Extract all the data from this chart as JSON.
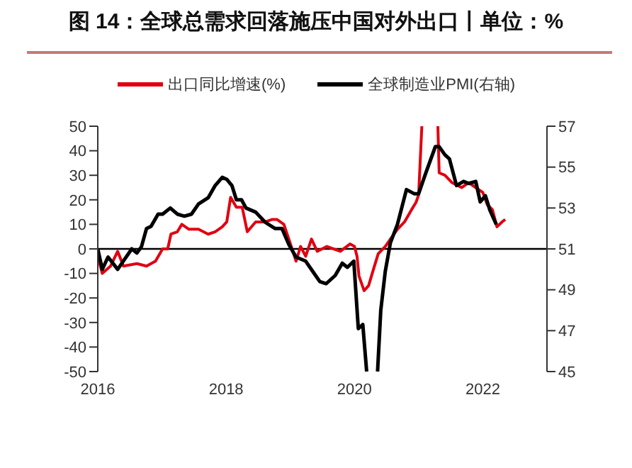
{
  "chart_data": {
    "type": "line",
    "title": "图 14：全球总需求回落施压中国对外出口丨单位：%",
    "xlim": [
      2016,
      2023
    ],
    "xticks": [
      2016,
      2018,
      2020,
      2022
    ],
    "ylim": [
      -50,
      50
    ],
    "yticks": [
      -50,
      -40,
      -30,
      -20,
      -10,
      0,
      10,
      20,
      30,
      40,
      50
    ],
    "y2lim": [
      45,
      57
    ],
    "y2ticks": [
      45,
      47,
      49,
      51,
      53,
      55,
      57
    ],
    "legend": "top",
    "grid": false,
    "marker": "none",
    "line_style": "solid",
    "ref_lines": [
      {
        "axis": "y",
        "value": 0,
        "color": "#000000"
      }
    ],
    "series": [
      {
        "name": "出口同比增速(%)",
        "color": "#e00010",
        "x": [
          2016.0,
          2016.07,
          2016.2,
          2016.31,
          2016.4,
          2016.61,
          2016.76,
          2016.9,
          2017.01,
          2017.09,
          2017.14,
          2017.24,
          2017.31,
          2017.42,
          2017.57,
          2017.72,
          2017.83,
          2017.94,
          2018.01,
          2018.07,
          2018.16,
          2018.25,
          2018.33,
          2018.46,
          2018.61,
          2018.72,
          2018.79,
          2018.9,
          2018.99,
          2019.09,
          2019.16,
          2019.24,
          2019.33,
          2019.42,
          2019.57,
          2019.78,
          2019.93,
          2020.0,
          2020.04,
          2020.07,
          2020.15,
          2020.22,
          2020.3,
          2020.37,
          2020.48,
          2020.56,
          2020.67,
          2020.78,
          2020.89,
          2020.96,
          2021.0,
          2021.05,
          2021.18,
          2021.3,
          2021.32,
          2021.41,
          2021.52,
          2021.67,
          2021.78,
          2021.89,
          2022.0,
          2022.07,
          2022.15,
          2022.22,
          2022.3,
          2022.35
        ],
        "values": [
          -3,
          -10,
          -7,
          -1,
          -7,
          -6,
          -7,
          -5,
          0,
          0,
          6,
          7,
          10,
          8,
          8,
          6,
          7,
          9,
          11,
          21,
          17,
          17,
          7,
          11,
          11,
          12,
          12,
          10,
          3,
          -5,
          1,
          -3,
          4,
          -1,
          1,
          -1,
          2,
          1,
          -3,
          -11,
          -17,
          -15,
          -8,
          -2,
          1,
          4,
          8,
          11,
          16,
          19,
          22,
          50,
          null,
          50,
          31,
          30,
          27,
          25,
          27,
          25,
          23,
          18,
          16,
          9,
          11,
          12
        ]
      },
      {
        "name": "全球制造业PMI(右轴)",
        "color": "#000000",
        "axis": "y2",
        "x": [
          2016.0,
          2016.07,
          2016.16,
          2016.31,
          2016.42,
          2016.53,
          2016.61,
          2016.68,
          2016.76,
          2016.83,
          2016.94,
          2017.01,
          2017.13,
          2017.24,
          2017.35,
          2017.46,
          2017.57,
          2017.72,
          2017.83,
          2017.94,
          2018.01,
          2018.09,
          2018.16,
          2018.24,
          2018.31,
          2018.46,
          2018.61,
          2018.76,
          2018.87,
          2018.98,
          2019.09,
          2019.24,
          2019.35,
          2019.46,
          2019.56,
          2019.7,
          2019.81,
          2019.89,
          2019.99,
          2020.06,
          2020.13,
          2020.19,
          2020.28,
          2020.36,
          2020.41,
          2020.48,
          2020.56,
          2020.67,
          2020.81,
          2020.93,
          2021.0,
          2021.11,
          2021.26,
          2021.32,
          2021.41,
          2021.48,
          2021.59,
          2021.7,
          2021.78,
          2021.89,
          2021.96,
          2022.04,
          2022.11,
          2022.21
        ],
        "values": [
          51,
          50.0,
          50.6,
          50.0,
          50.5,
          51,
          50.8,
          51.1,
          52.0,
          52.1,
          52.7,
          52.7,
          53.0,
          52.7,
          52.6,
          52.7,
          53.2,
          53.5,
          54.1,
          54.5,
          54.4,
          54.1,
          53.4,
          53.4,
          53.0,
          52.8,
          52.3,
          52.0,
          52.0,
          51.2,
          50.6,
          50.4,
          49.9,
          49.4,
          49.3,
          49.7,
          50.3,
          50.1,
          50.4,
          47.1,
          47.3,
          45,
          null,
          45,
          48.0,
          49.9,
          51.3,
          52.2,
          53.9,
          53.7,
          53.7,
          54.7,
          56.0,
          56.0,
          55.6,
          55.4,
          54.1,
          54.3,
          54.2,
          54.3,
          53.3,
          53.6,
          52.9,
          52.2
        ]
      }
    ]
  }
}
